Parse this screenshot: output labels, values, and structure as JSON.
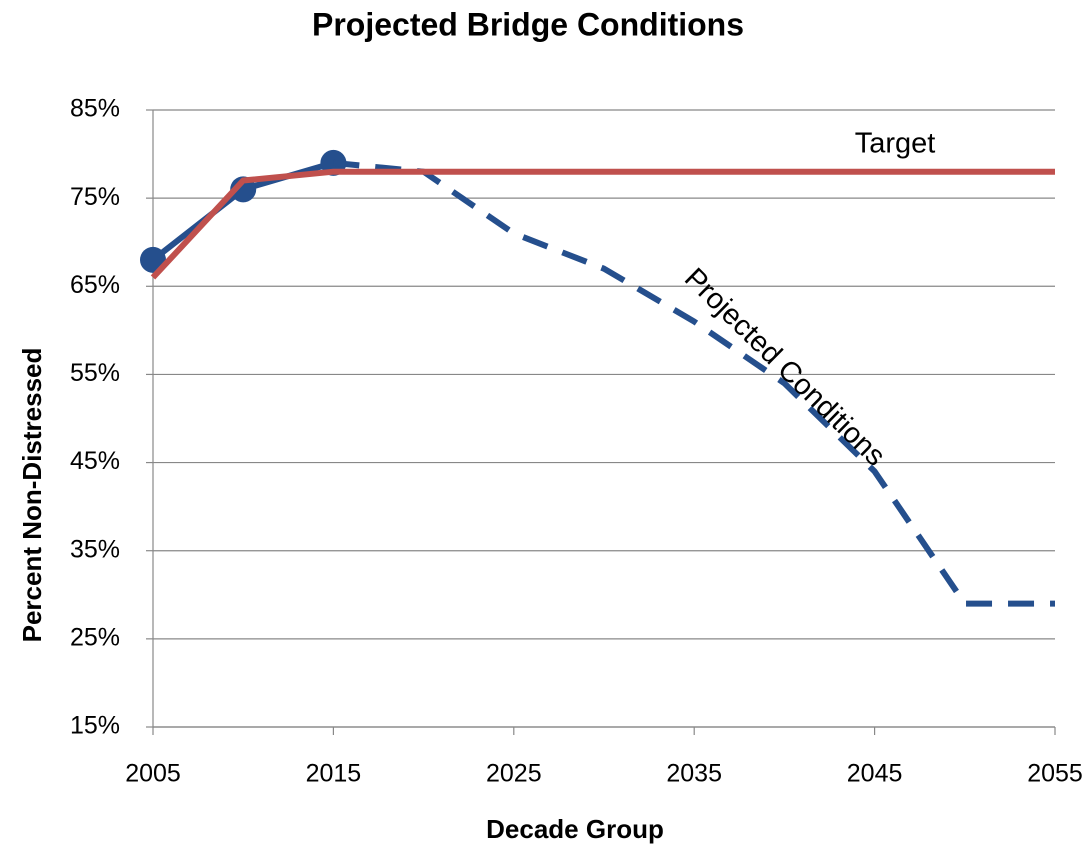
{
  "chart_data": {
    "type": "line",
    "title": "Projected Bridge Conditions",
    "xlabel": "Decade Group",
    "ylabel": "Percent Non-Distressed",
    "x": [
      2005,
      2010,
      2015,
      2020,
      2025,
      2030,
      2035,
      2040,
      2045,
      2050,
      2055
    ],
    "series": [
      {
        "color": "#254f8d",
        "markers": true,
        "values": [
          68,
          76,
          79,
          null,
          null,
          null,
          null,
          null,
          null,
          null,
          null
        ]
      },
      {
        "name": "Projected Conditions",
        "color": "#254f8d",
        "dashed": true,
        "values": [
          null,
          null,
          79,
          78,
          71,
          67,
          61,
          54,
          44,
          29,
          29
        ]
      },
      {
        "name": "Target",
        "color": "#c0504d",
        "values": [
          66,
          77,
          78,
          78,
          78,
          78,
          78,
          78,
          78,
          78,
          78
        ]
      }
    ],
    "xlim": [
      2005,
      2055
    ],
    "xticks": [
      2005,
      2015,
      2025,
      2035,
      2045,
      2055
    ],
    "ylim": [
      15,
      85
    ],
    "yticks": [
      {
        "value": 15,
        "label": "15%"
      },
      {
        "value": 25,
        "label": "25%"
      },
      {
        "value": 35,
        "label": "35%"
      },
      {
        "value": 45,
        "label": "45%"
      },
      {
        "value": 55,
        "label": "55%"
      },
      {
        "value": 65,
        "label": "65%"
      },
      {
        "value": 75,
        "label": "75%"
      },
      {
        "value": 85,
        "label": "85%"
      }
    ],
    "grid": true
  }
}
